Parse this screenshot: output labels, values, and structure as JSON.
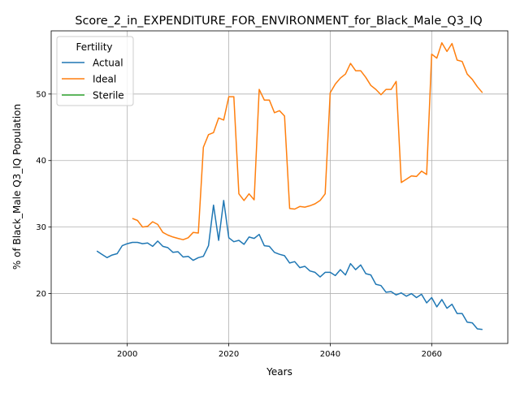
{
  "chart_data": {
    "type": "line",
    "title": "Score_2_in_EXPENDITURE_FOR_ENVIRONMENT_for_Black_Male_Q3_IQ",
    "xlabel": "Years",
    "ylabel": "% of Black_Male Q3_IQ Population",
    "xlim": [
      1985,
      2075
    ],
    "ylim": [
      12.5,
      59.5
    ],
    "x_ticks": [
      2000,
      2020,
      2040,
      2060
    ],
    "y_ticks": [
      20,
      30,
      40,
      50
    ],
    "grid": true,
    "legend": {
      "title": "Fertility",
      "placement": "top-left"
    },
    "series": [
      {
        "name": "Actual",
        "color": "#1f77b4",
        "x": [
          1994,
          1995,
          1996,
          1997,
          1998,
          1999,
          2000,
          2001,
          2002,
          2003,
          2004,
          2005,
          2006,
          2007,
          2008,
          2009,
          2010,
          2011,
          2012,
          2013,
          2014,
          2015,
          2016,
          2017,
          2018,
          2019,
          2020,
          2021,
          2022,
          2023,
          2024,
          2025,
          2026,
          2027,
          2028,
          2029,
          2030,
          2031,
          2032,
          2033,
          2034,
          2035,
          2036,
          2037,
          2038,
          2039,
          2040,
          2041,
          2042,
          2043,
          2044,
          2045,
          2046,
          2047,
          2048,
          2049,
          2050,
          2051,
          2052,
          2053,
          2054,
          2055,
          2056,
          2057,
          2058,
          2059,
          2060,
          2061,
          2062,
          2063,
          2064,
          2065,
          2066,
          2067,
          2068,
          2069,
          2070
        ],
        "y": [
          26.4,
          25.9,
          25.4,
          25.8,
          26.0,
          27.2,
          27.5,
          27.7,
          27.7,
          27.5,
          27.6,
          27.1,
          27.9,
          27.1,
          26.9,
          26.2,
          26.3,
          25.5,
          25.6,
          25.0,
          25.4,
          25.6,
          27.2,
          33.3,
          28.0,
          34.0,
          28.4,
          27.8,
          28.0,
          27.4,
          28.5,
          28.3,
          28.9,
          27.2,
          27.1,
          26.2,
          25.9,
          25.7,
          24.6,
          24.8,
          23.9,
          24.1,
          23.4,
          23.2,
          22.5,
          23.2,
          23.2,
          22.7,
          23.6,
          22.8,
          24.5,
          23.6,
          24.3,
          23.0,
          22.8,
          21.4,
          21.2,
          20.2,
          20.3,
          19.8,
          20.1,
          19.6,
          20.0,
          19.4,
          19.9,
          18.6,
          19.4,
          18.0,
          19.1,
          17.8,
          18.4,
          17.0,
          17.0,
          15.7,
          15.6,
          14.7,
          14.6
        ]
      },
      {
        "name": "Ideal",
        "color": "#ff7f0e",
        "x": [
          2001,
          2002,
          2003,
          2004,
          2005,
          2006,
          2007,
          2008,
          2009,
          2010,
          2011,
          2012,
          2013,
          2014,
          2015,
          2016,
          2017,
          2018,
          2019,
          2020,
          2021,
          2022,
          2023,
          2024,
          2025,
          2026,
          2027,
          2028,
          2029,
          2030,
          2031,
          2032,
          2033,
          2034,
          2035,
          2036,
          2037,
          2038,
          2039,
          2040,
          2041,
          2042,
          2043,
          2044,
          2045,
          2046,
          2047,
          2048,
          2049,
          2050,
          2051,
          2052,
          2053,
          2054,
          2055,
          2056,
          2057,
          2058,
          2059,
          2060,
          2061,
          2062,
          2063,
          2064,
          2065,
          2066,
          2067,
          2068,
          2069,
          2070
        ],
        "y": [
          31.3,
          31.0,
          30.0,
          30.1,
          30.8,
          30.4,
          29.2,
          28.8,
          28.5,
          28.3,
          28.1,
          28.4,
          29.2,
          29.1,
          42.0,
          43.9,
          44.2,
          46.4,
          46.1,
          49.6,
          49.6,
          35.0,
          34.0,
          35.0,
          34.1,
          50.7,
          49.1,
          49.1,
          47.2,
          47.5,
          46.7,
          32.8,
          32.7,
          33.1,
          33.0,
          33.2,
          33.5,
          34.0,
          35.0,
          50.2,
          51.5,
          52.4,
          53.0,
          54.6,
          53.5,
          53.5,
          52.5,
          51.3,
          50.7,
          49.9,
          50.7,
          50.7,
          51.9,
          36.7,
          37.2,
          37.7,
          37.6,
          38.4,
          37.9,
          56.0,
          55.4,
          57.7,
          56.4,
          57.6,
          55.1,
          54.9,
          53.0,
          52.2,
          51.1,
          50.2
        ]
      },
      {
        "name": "Sterile",
        "color": "#2ca02c",
        "x": [],
        "y": []
      }
    ]
  }
}
